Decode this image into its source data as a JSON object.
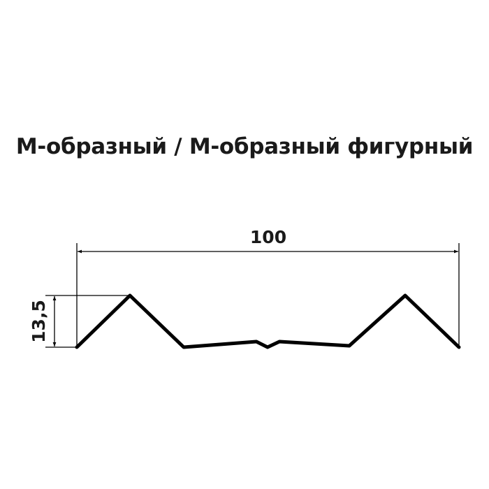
{
  "title": "М-образный / М-образный фигурный",
  "dimensions": {
    "width_label": "100",
    "height_label": "13,5"
  },
  "colors": {
    "profile": "#000000",
    "text": "#1a1a1a",
    "background": "#ffffff"
  }
}
